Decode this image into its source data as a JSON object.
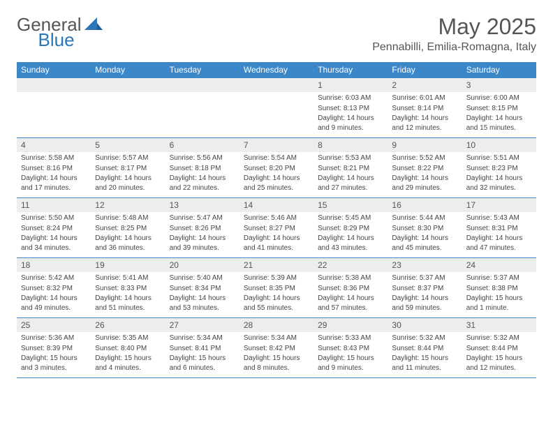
{
  "logo": {
    "general": "General",
    "blue": "Blue"
  },
  "title": "May 2025",
  "location": "Pennabilli, Emilia-Romagna, Italy",
  "header_bg": "#3b87c8",
  "header_fg": "#ffffff",
  "daynum_bg": "#eceded",
  "border_color": "#3b87c8",
  "weekdays": [
    "Sunday",
    "Monday",
    "Tuesday",
    "Wednesday",
    "Thursday",
    "Friday",
    "Saturday"
  ],
  "weeks": [
    [
      null,
      null,
      null,
      null,
      {
        "d": "1",
        "sr": "6:03 AM",
        "ss": "8:13 PM",
        "dl": "14 hours and 9 minutes."
      },
      {
        "d": "2",
        "sr": "6:01 AM",
        "ss": "8:14 PM",
        "dl": "14 hours and 12 minutes."
      },
      {
        "d": "3",
        "sr": "6:00 AM",
        "ss": "8:15 PM",
        "dl": "14 hours and 15 minutes."
      }
    ],
    [
      {
        "d": "4",
        "sr": "5:58 AM",
        "ss": "8:16 PM",
        "dl": "14 hours and 17 minutes."
      },
      {
        "d": "5",
        "sr": "5:57 AM",
        "ss": "8:17 PM",
        "dl": "14 hours and 20 minutes."
      },
      {
        "d": "6",
        "sr": "5:56 AM",
        "ss": "8:18 PM",
        "dl": "14 hours and 22 minutes."
      },
      {
        "d": "7",
        "sr": "5:54 AM",
        "ss": "8:20 PM",
        "dl": "14 hours and 25 minutes."
      },
      {
        "d": "8",
        "sr": "5:53 AM",
        "ss": "8:21 PM",
        "dl": "14 hours and 27 minutes."
      },
      {
        "d": "9",
        "sr": "5:52 AM",
        "ss": "8:22 PM",
        "dl": "14 hours and 29 minutes."
      },
      {
        "d": "10",
        "sr": "5:51 AM",
        "ss": "8:23 PM",
        "dl": "14 hours and 32 minutes."
      }
    ],
    [
      {
        "d": "11",
        "sr": "5:50 AM",
        "ss": "8:24 PM",
        "dl": "14 hours and 34 minutes."
      },
      {
        "d": "12",
        "sr": "5:48 AM",
        "ss": "8:25 PM",
        "dl": "14 hours and 36 minutes."
      },
      {
        "d": "13",
        "sr": "5:47 AM",
        "ss": "8:26 PM",
        "dl": "14 hours and 39 minutes."
      },
      {
        "d": "14",
        "sr": "5:46 AM",
        "ss": "8:27 PM",
        "dl": "14 hours and 41 minutes."
      },
      {
        "d": "15",
        "sr": "5:45 AM",
        "ss": "8:29 PM",
        "dl": "14 hours and 43 minutes."
      },
      {
        "d": "16",
        "sr": "5:44 AM",
        "ss": "8:30 PM",
        "dl": "14 hours and 45 minutes."
      },
      {
        "d": "17",
        "sr": "5:43 AM",
        "ss": "8:31 PM",
        "dl": "14 hours and 47 minutes."
      }
    ],
    [
      {
        "d": "18",
        "sr": "5:42 AM",
        "ss": "8:32 PM",
        "dl": "14 hours and 49 minutes."
      },
      {
        "d": "19",
        "sr": "5:41 AM",
        "ss": "8:33 PM",
        "dl": "14 hours and 51 minutes."
      },
      {
        "d": "20",
        "sr": "5:40 AM",
        "ss": "8:34 PM",
        "dl": "14 hours and 53 minutes."
      },
      {
        "d": "21",
        "sr": "5:39 AM",
        "ss": "8:35 PM",
        "dl": "14 hours and 55 minutes."
      },
      {
        "d": "22",
        "sr": "5:38 AM",
        "ss": "8:36 PM",
        "dl": "14 hours and 57 minutes."
      },
      {
        "d": "23",
        "sr": "5:37 AM",
        "ss": "8:37 PM",
        "dl": "14 hours and 59 minutes."
      },
      {
        "d": "24",
        "sr": "5:37 AM",
        "ss": "8:38 PM",
        "dl": "15 hours and 1 minute."
      }
    ],
    [
      {
        "d": "25",
        "sr": "5:36 AM",
        "ss": "8:39 PM",
        "dl": "15 hours and 3 minutes."
      },
      {
        "d": "26",
        "sr": "5:35 AM",
        "ss": "8:40 PM",
        "dl": "15 hours and 4 minutes."
      },
      {
        "d": "27",
        "sr": "5:34 AM",
        "ss": "8:41 PM",
        "dl": "15 hours and 6 minutes."
      },
      {
        "d": "28",
        "sr": "5:34 AM",
        "ss": "8:42 PM",
        "dl": "15 hours and 8 minutes."
      },
      {
        "d": "29",
        "sr": "5:33 AM",
        "ss": "8:43 PM",
        "dl": "15 hours and 9 minutes."
      },
      {
        "d": "30",
        "sr": "5:32 AM",
        "ss": "8:44 PM",
        "dl": "15 hours and 11 minutes."
      },
      {
        "d": "31",
        "sr": "5:32 AM",
        "ss": "8:44 PM",
        "dl": "15 hours and 12 minutes."
      }
    ]
  ],
  "labels": {
    "sunrise": "Sunrise: ",
    "sunset": "Sunset: ",
    "daylight": "Daylight: "
  }
}
